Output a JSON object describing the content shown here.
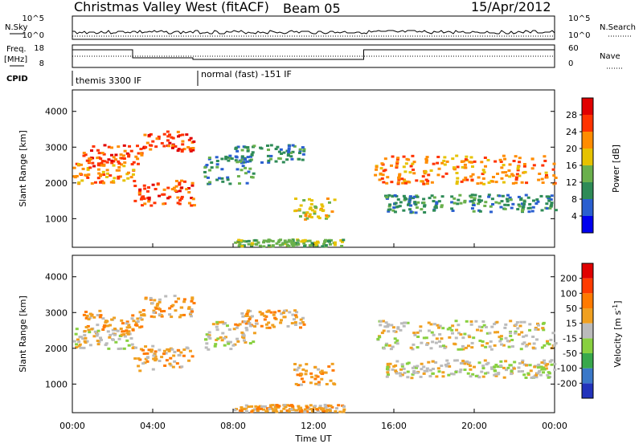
{
  "header": {
    "station": "Christmas Valley West (fitACF)",
    "beam": "Beam 05",
    "date": "15/Apr/2012"
  },
  "time_axis": {
    "label": "Time UT",
    "ticks": [
      "00:00",
      "04:00",
      "08:00",
      "12:00",
      "16:00",
      "20:00",
      "00:00"
    ],
    "range_hours": [
      0,
      24
    ]
  },
  "top_panels": {
    "nsky": {
      "label": "N.Sky",
      "ticks": [
        "10^5",
        "10^0"
      ],
      "right_label": "N.Search",
      "right_ticks": [
        "10^5",
        "10^0"
      ]
    },
    "freq": {
      "label_line1": "Freq.",
      "label_line2": "[MHz]",
      "ticks": [
        "18",
        "8"
      ],
      "right_label": "Nave",
      "right_ticks": [
        "60",
        "0"
      ]
    },
    "cpid": {
      "label": "CPID",
      "modes": [
        "themis 3300 IF",
        "normal (fast) -151 IF"
      ]
    }
  },
  "chart_data": [
    {
      "type": "heatmap",
      "name": "power",
      "ylabel": "Slant Range [km]",
      "yticks": [
        1000,
        2000,
        3000,
        4000
      ],
      "ylim": [
        200,
        4600
      ],
      "colorbar_label": "Power [dB]",
      "colorbar_ticks": [
        "4",
        "8",
        "12",
        "16",
        "20",
        "24",
        "28"
      ],
      "colors": [
        "#0000ee",
        "#2a5fd0",
        "#2e8b57",
        "#6ab04c",
        "#e6c200",
        "#ff8c00",
        "#ff3300",
        "#e00000"
      ],
      "echo_regions": [
        {
          "t0": 0.0,
          "t1": 3.0,
          "r0": 2000,
          "r1": 2600,
          "level": 5
        },
        {
          "t0": 0.5,
          "t1": 3.5,
          "r0": 2500,
          "r1": 3100,
          "level": 6
        },
        {
          "t0": 3.0,
          "t1": 6.0,
          "r0": 1400,
          "r1": 2100,
          "level": 6
        },
        {
          "t0": 3.5,
          "t1": 6.0,
          "r0": 2900,
          "r1": 3500,
          "level": 6
        },
        {
          "t0": 6.5,
          "t1": 9.0,
          "r0": 2000,
          "r1": 2800,
          "level": 2
        },
        {
          "t0": 8.0,
          "t1": 11.5,
          "r0": 2600,
          "r1": 3100,
          "level": 2
        },
        {
          "t0": 11.0,
          "t1": 13.0,
          "r0": 1000,
          "r1": 1600,
          "level": 4
        },
        {
          "t0": 15.0,
          "t1": 24.0,
          "r0": 2000,
          "r1": 2800,
          "level": 5
        },
        {
          "t0": 15.5,
          "t1": 24.0,
          "r0": 1200,
          "r1": 1700,
          "level": 2
        },
        {
          "t0": 8.0,
          "t1": 13.5,
          "r0": 250,
          "r1": 450,
          "level": 3
        }
      ]
    },
    {
      "type": "heatmap",
      "name": "velocity",
      "ylabel": "Slant Range [km]",
      "yticks": [
        1000,
        2000,
        3000,
        4000
      ],
      "ylim": [
        200,
        4600
      ],
      "colorbar_label": "Velocity [m s",
      "colorbar_label_exponent": "-1",
      "colorbar_label_close": "]",
      "colorbar_ticks": [
        "200",
        "100",
        "50",
        "15",
        "-15",
        "-50",
        "-100",
        "-200"
      ],
      "colors": [
        "#2233bb",
        "#3a78c8",
        "#38a84c",
        "#88d040",
        "#bbbbbb",
        "#f0a020",
        "#ff7a00",
        "#ff3b00",
        "#e00000"
      ],
      "echo_regions": [
        {
          "t0": 0.0,
          "t1": 3.0,
          "r0": 2000,
          "r1": 2600,
          "level": 4
        },
        {
          "t0": 0.5,
          "t1": 3.5,
          "r0": 2500,
          "r1": 3100,
          "level": 5
        },
        {
          "t0": 3.0,
          "t1": 6.0,
          "r0": 1400,
          "r1": 2100,
          "level": 5
        },
        {
          "t0": 3.5,
          "t1": 6.0,
          "r0": 2900,
          "r1": 3500,
          "level": 5
        },
        {
          "t0": 6.5,
          "t1": 9.0,
          "r0": 2000,
          "r1": 2800,
          "level": 4
        },
        {
          "t0": 8.0,
          "t1": 11.5,
          "r0": 2600,
          "r1": 3100,
          "level": 5
        },
        {
          "t0": 11.0,
          "t1": 13.0,
          "r0": 1000,
          "r1": 1600,
          "level": 5
        },
        {
          "t0": 15.0,
          "t1": 24.0,
          "r0": 2000,
          "r1": 2800,
          "level": 4
        },
        {
          "t0": 15.5,
          "t1": 24.0,
          "r0": 1200,
          "r1": 1700,
          "level": 4
        },
        {
          "t0": 8.0,
          "t1": 13.5,
          "r0": 250,
          "r1": 450,
          "level": 5
        }
      ]
    }
  ]
}
